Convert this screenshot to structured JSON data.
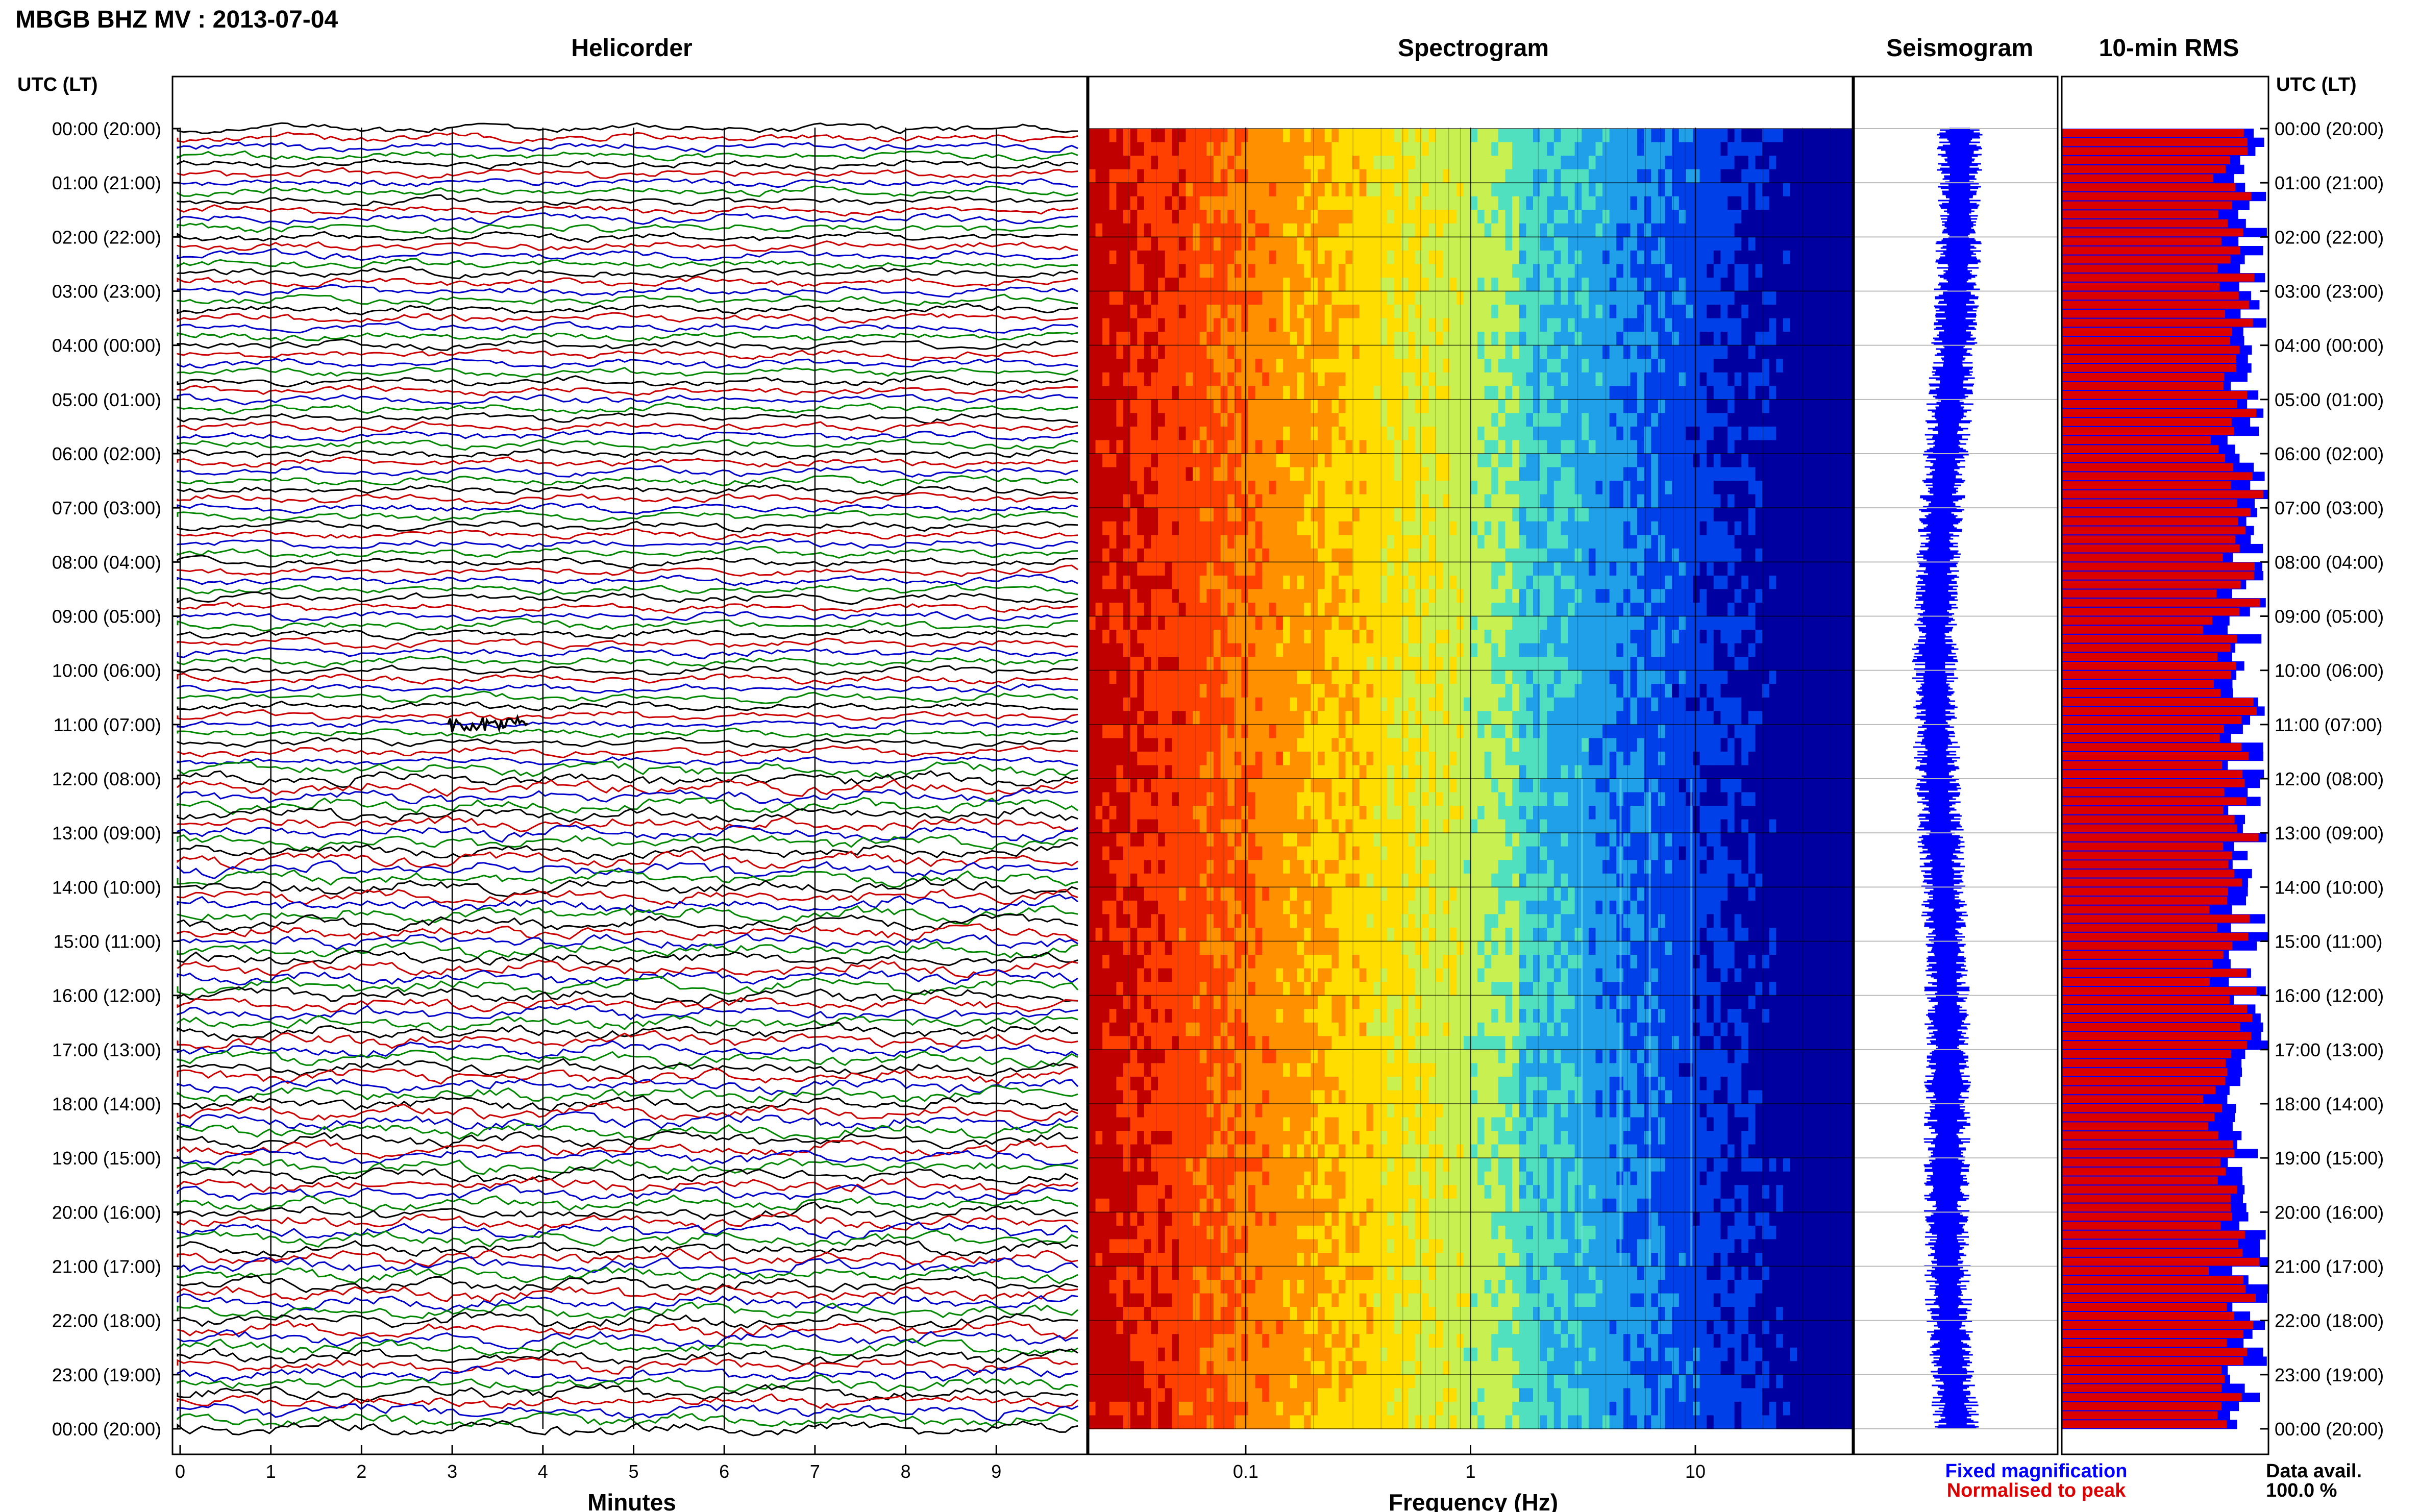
{
  "header": {
    "station_title": "MBGB BHZ MV : 2013-07-04",
    "utc_label": "UTC (LT)"
  },
  "panels": {
    "helicorder": "Helicorder",
    "spectrogram": "Spectrogram",
    "seismogram": "Seismogram",
    "rms": "10-min RMS"
  },
  "legend": {
    "fixed": "Fixed magnification",
    "normalised": "Normalised to peak",
    "data_avail_label": "Data avail.",
    "data_avail_value": "100.0 %",
    "fixed_color": "#0000ff",
    "normalised_color": "#dd0000"
  },
  "chart_data": [
    {
      "type": "line",
      "name": "helicorder",
      "title": "Helicorder",
      "xlabel": "Minutes",
      "x_ticks": [
        "0",
        "1",
        "2",
        "3",
        "4",
        "5",
        "6",
        "7",
        "8",
        "9"
      ],
      "xlim": [
        0,
        10
      ],
      "time_labels": [
        "00:00 (20:00)",
        "01:00 (21:00)",
        "02:00 (22:00)",
        "03:00 (23:00)",
        "04:00 (00:00)",
        "05:00 (01:00)",
        "06:00 (02:00)",
        "07:00 (03:00)",
        "08:00 (04:00)",
        "09:00 (05:00)",
        "10:00 (06:00)",
        "11:00 (07:00)",
        "12:00 (08:00)",
        "13:00 (09:00)",
        "14:00 (10:00)",
        "15:00 (11:00)",
        "16:00 (12:00)",
        "17:00 (13:00)",
        "18:00 (14:00)",
        "19:00 (15:00)",
        "20:00 (16:00)",
        "21:00 (17:00)",
        "22:00 (18:00)",
        "23:00 (19:00)",
        "00:00 (20:00)"
      ],
      "trace_colors": [
        "#000000",
        "#cc0000",
        "#0000cc",
        "#008800"
      ],
      "traces_count": 144
    },
    {
      "type": "heatmap",
      "name": "spectrogram",
      "title": "Spectrogram",
      "xlabel": "Frequency (Hz)",
      "x_scale": "log",
      "x_ticks": [
        "0.1",
        "1",
        "10"
      ],
      "xlim": [
        0.02,
        50
      ],
      "colormap": [
        "#c00000",
        "#ff4000",
        "#ff9000",
        "#ffdd00",
        "#c8f050",
        "#50e0c0",
        "#20a0e8",
        "#0040e8",
        "#0000a0"
      ]
    },
    {
      "type": "line",
      "name": "seismogram",
      "title": "Seismogram",
      "color": "#0000ff"
    },
    {
      "type": "bar",
      "name": "rms",
      "title": "10-min RMS",
      "orientation": "horizontal",
      "series": [
        {
          "name": "Fixed magnification",
          "color": "#0000ff"
        },
        {
          "name": "Normalised to peak",
          "color": "#dd0000"
        }
      ]
    }
  ]
}
